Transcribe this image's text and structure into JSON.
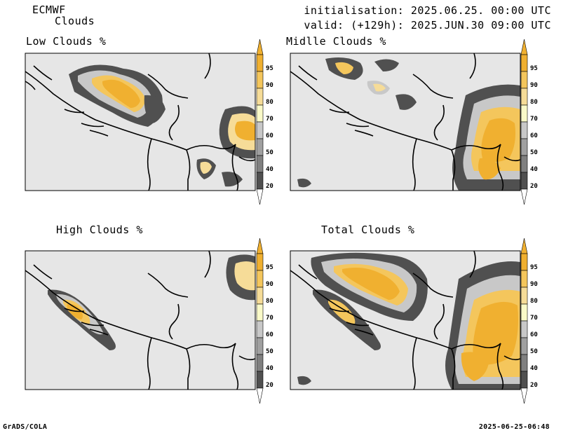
{
  "header": {
    "model": "ECMWF",
    "product": "Clouds",
    "initialisation": "initialisation: 2025.06.25. 00:00 UTC",
    "valid": "valid: (+129h): 2025.JUN.30 09:00 UTC"
  },
  "panels": [
    {
      "id": "low",
      "title": "Low Clouds %"
    },
    {
      "id": "middle",
      "title": "Midlle Clouds %"
    },
    {
      "id": "high",
      "title": "High Clouds %"
    },
    {
      "id": "total",
      "title": "Total Clouds %"
    }
  ],
  "colorbar": {
    "labels": [
      "95",
      "90",
      "80",
      "70",
      "60",
      "50",
      "40",
      "20"
    ],
    "colors": {
      "95": "#f0b030",
      "90": "#f4c65c",
      "80": "#f6dc98",
      "70": "#fafac8",
      "60": "#c8c8c8",
      "50": "#a0a0a0",
      "40": "#808080",
      "20": "#505050",
      "below": "#ffffff"
    }
  },
  "map": {
    "background_color": "#e6e6e6",
    "border_color": "#000000"
  },
  "footer": {
    "left": "GrADS/COLA",
    "right": "2025-06-25-06:48"
  }
}
